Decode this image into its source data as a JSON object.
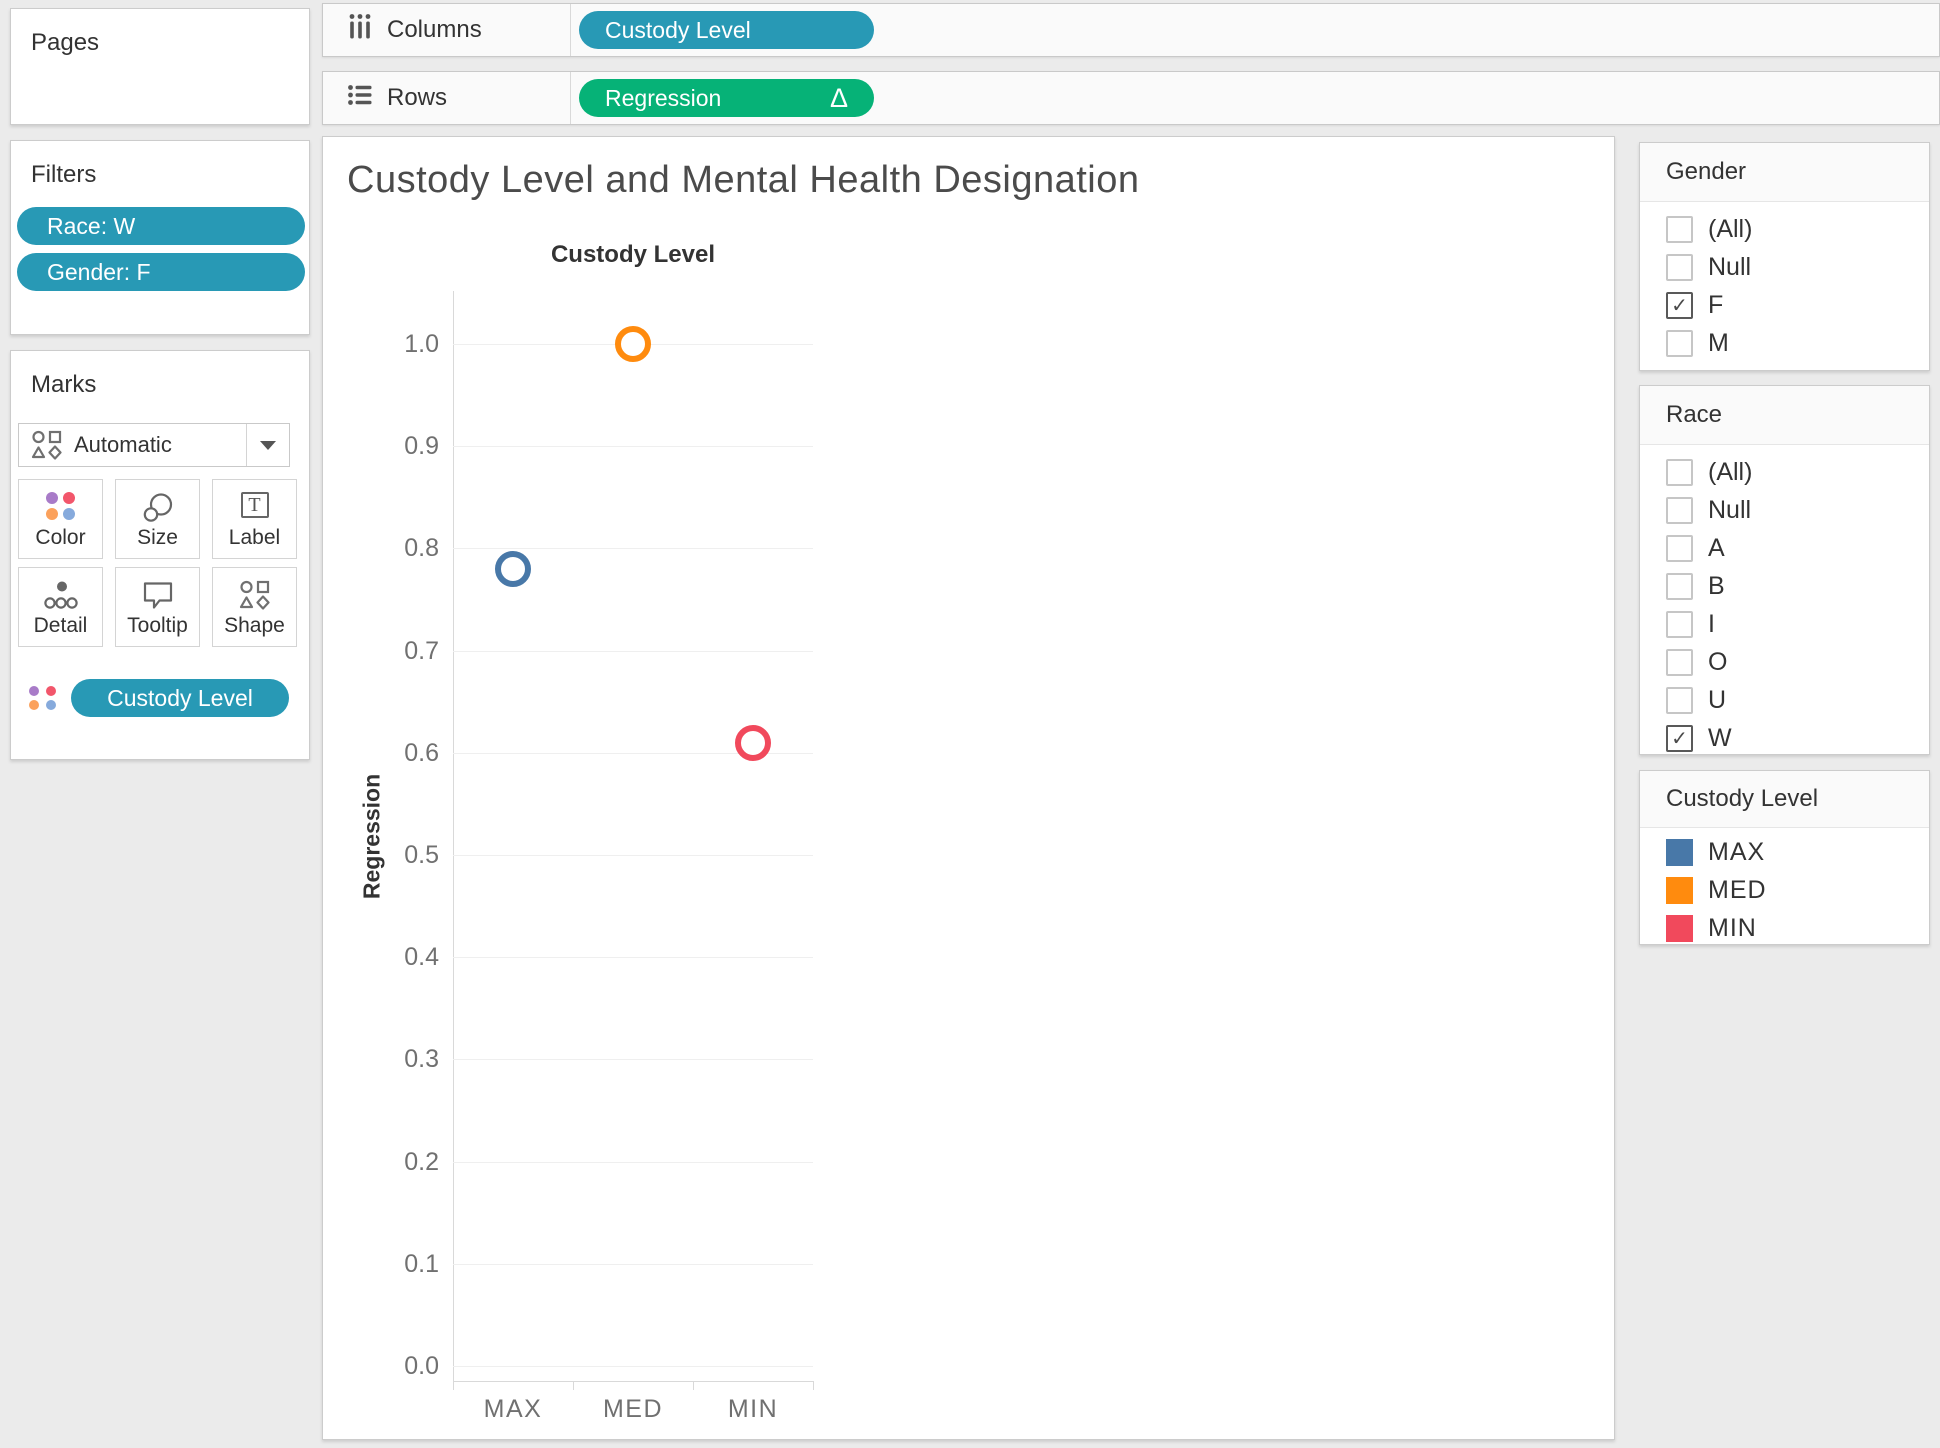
{
  "pages": {
    "title": "Pages"
  },
  "shelves": {
    "columns": {
      "label": "Columns",
      "pill": "Custody Level"
    },
    "rows": {
      "label": "Rows",
      "pill": "Regression",
      "delta": "Δ"
    }
  },
  "filters": {
    "title": "Filters",
    "pills": [
      "Race: W",
      "Gender: F"
    ]
  },
  "marks": {
    "title": "Marks",
    "mark_type": "Automatic",
    "buttons": [
      {
        "label": "Color",
        "icon": "color-dots-icon"
      },
      {
        "label": "Size",
        "icon": "size-circles-icon"
      },
      {
        "label": "Label",
        "icon": "label-t-icon"
      },
      {
        "label": "Detail",
        "icon": "detail-dots-icon"
      },
      {
        "label": "Tooltip",
        "icon": "tooltip-bubble-icon"
      },
      {
        "label": "Shape",
        "icon": "shapes-icon"
      }
    ],
    "color_pill": "Custody Level"
  },
  "viz": {
    "title": "Custody Level and Mental Health Designation"
  },
  "chart_data": {
    "type": "scatter",
    "title": "Custody Level and Mental Health Designation",
    "column_header": "Custody Level",
    "ylabel": "Regression",
    "categories": [
      "MAX",
      "MED",
      "MIN"
    ],
    "values": [
      0.78,
      1.0,
      0.61
    ],
    "colors": [
      "#4878a8",
      "#ff8b0e",
      "#f1495c"
    ],
    "marker": "open-circle",
    "grid": true,
    "ylim": [
      0,
      1.05
    ],
    "yticks": [
      0.0,
      0.1,
      0.2,
      0.3,
      0.4,
      0.5,
      0.6,
      0.7,
      0.8,
      0.9,
      1.0
    ],
    "legend_position": "right"
  },
  "legends": {
    "gender": {
      "title": "Gender",
      "items": [
        {
          "label": "(All)",
          "checked": false
        },
        {
          "label": "Null",
          "checked": false
        },
        {
          "label": "F",
          "checked": true
        },
        {
          "label": "M",
          "checked": false
        }
      ]
    },
    "race": {
      "title": "Race",
      "items": [
        {
          "label": "(All)",
          "checked": false
        },
        {
          "label": "Null",
          "checked": false
        },
        {
          "label": "A",
          "checked": false
        },
        {
          "label": "B",
          "checked": false
        },
        {
          "label": "I",
          "checked": false
        },
        {
          "label": "O",
          "checked": false
        },
        {
          "label": "U",
          "checked": false
        },
        {
          "label": "W",
          "checked": true
        }
      ]
    },
    "custody": {
      "title": "Custody Level",
      "items": [
        {
          "label": "MAX",
          "color": "#4878a8"
        },
        {
          "label": "MED",
          "color": "#ff8b0e"
        },
        {
          "label": "MIN",
          "color": "#f1495c"
        }
      ]
    }
  },
  "icons": {
    "check": "✓",
    "caret": "▼"
  },
  "colors": {
    "dimension_pill": "#2899b5",
    "measure_pill": "#06b277",
    "background": "#ebebeb"
  }
}
